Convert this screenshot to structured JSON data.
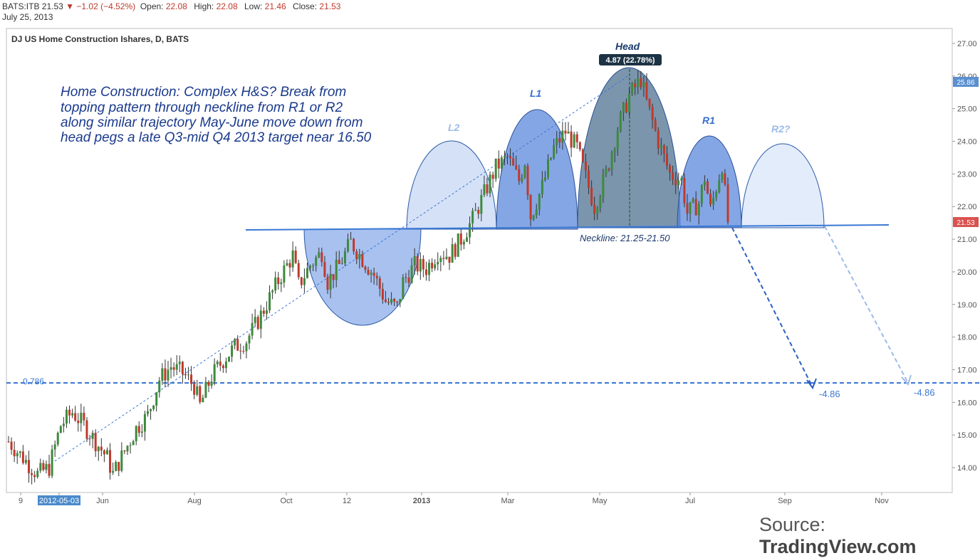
{
  "header": {
    "symbol": "BATS:ITB",
    "price": "21.53",
    "change_arrow": "▼",
    "change": "−1.02 (−4.52%)",
    "open_label": "Open:",
    "open": "22.08",
    "high_label": "High:",
    "high": "22.08",
    "low_label": "Low:",
    "low": "21.46",
    "close_label": "Close:",
    "close": "21.53",
    "date": "July 25, 2013"
  },
  "chart_title": "DJ US Home Construction Ishares, D, BATS",
  "annotation": "Home Construction: Complex H&S?  Break from topping pattern through neckline from R1 or R2 along similar trajectory May-June move down from head pegs a late Q3-mid Q4 2013 target near 16.50",
  "annotation_lines": [
    "Home Construction: Complex H&S?  Break from",
    "topping pattern through neckline from R1 or R2",
    "along similar trajectory May-June move down from",
    "head pegs a late Q3-mid Q4 2013 target near 16.50"
  ],
  "source": {
    "prefix": "Source: ",
    "brand": "TradingView.com"
  },
  "colors": {
    "up": "#3d8a3d",
    "down": "#c0392b",
    "pattern_dark": "#3f6bb8",
    "pattern_light": "#b9cdf0",
    "head_fill": "#5a7a99",
    "neckline": "#3a78d4",
    "fib_line": "#3a78d4",
    "price_tag": "#d9534f",
    "high_tag": "#5b8fd0"
  },
  "chart_data": {
    "type": "candlestick",
    "title": "DJ US Home Construction Ishares, D, BATS",
    "ylim": [
      13.3,
      27.3
    ],
    "y_ticks": [
      "14.00",
      "15.00",
      "16.00",
      "17.00",
      "18.00",
      "19.00",
      "20.00",
      "21.00",
      "22.00",
      "23.00",
      "24.00",
      "25.00",
      "26.00",
      "27.00"
    ],
    "x_ticks": [
      "9",
      "2012-05-03",
      "Jun",
      "Aug",
      "Oct",
      "12",
      "2013",
      "Mar",
      "May",
      "Jul",
      "Sep",
      "Nov"
    ],
    "last_price": "21.53",
    "high_marker": "25.86",
    "fib_label": "0.786",
    "fib_level": 16.6,
    "neckline_label": "Neckline: 21.25-21.50",
    "head_label": "Head",
    "head_badge": "4.87 (22.78%)",
    "pattern_labels": {
      "l2": "L2",
      "l1": "L1",
      "r1": "R1",
      "r2": "R2?"
    },
    "projection_labels": [
      "-4.86",
      "-4.86"
    ],
    "price_path": [
      [
        0,
        14.8
      ],
      [
        6,
        14.2
      ],
      [
        10,
        13.8
      ],
      [
        14,
        14.0
      ],
      [
        18,
        15.3
      ],
      [
        22,
        15.7
      ],
      [
        26,
        15.3
      ],
      [
        30,
        14.8
      ],
      [
        34,
        14.3
      ],
      [
        36,
        13.8
      ],
      [
        40,
        14.5
      ],
      [
        44,
        15.2
      ],
      [
        48,
        15.6
      ],
      [
        52,
        16.7
      ],
      [
        56,
        17.1
      ],
      [
        60,
        16.9
      ],
      [
        64,
        16.5
      ],
      [
        66,
        15.9
      ],
      [
        70,
        16.8
      ],
      [
        74,
        17.3
      ],
      [
        78,
        17.7
      ],
      [
        82,
        17.9
      ],
      [
        86,
        18.5
      ],
      [
        90,
        19.2
      ],
      [
        94,
        19.9
      ],
      [
        98,
        20.5
      ],
      [
        100,
        19.6
      ],
      [
        104,
        20.2
      ],
      [
        108,
        20.6
      ],
      [
        110,
        19.7
      ],
      [
        114,
        20.2
      ],
      [
        118,
        20.9
      ],
      [
        122,
        20.4
      ],
      [
        126,
        19.9
      ],
      [
        130,
        19.1
      ],
      [
        134,
        18.9
      ],
      [
        136,
        19.7
      ],
      [
        140,
        20.2
      ],
      [
        144,
        20.1
      ],
      [
        148,
        20.6
      ],
      [
        152,
        20.5
      ],
      [
        156,
        21.0
      ],
      [
        160,
        21.6
      ],
      [
        164,
        22.4
      ],
      [
        168,
        23.2
      ],
      [
        172,
        23.5
      ],
      [
        176,
        22.8
      ],
      [
        178,
        23.4
      ],
      [
        180,
        21.7
      ],
      [
        184,
        22.6
      ],
      [
        188,
        23.8
      ],
      [
        192,
        24.3
      ],
      [
        196,
        23.8
      ],
      [
        200,
        22.6
      ],
      [
        202,
        22.0
      ],
      [
        206,
        23.0
      ],
      [
        210,
        24.4
      ],
      [
        214,
        25.4
      ],
      [
        218,
        25.9
      ],
      [
        220,
        25.2
      ],
      [
        224,
        24.0
      ],
      [
        228,
        23.0
      ],
      [
        232,
        22.8
      ],
      [
        234,
        21.8
      ],
      [
        238,
        22.1
      ],
      [
        240,
        22.9
      ],
      [
        242,
        21.9
      ],
      [
        246,
        23.3
      ],
      [
        248,
        21.5
      ]
    ]
  }
}
